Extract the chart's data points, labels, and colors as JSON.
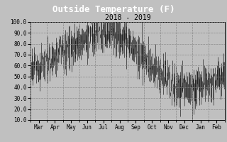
{
  "title": "Outside Temperature (F)",
  "subtitle": "2018 - 2019",
  "ylim": [
    10.0,
    100.0
  ],
  "yticks": [
    10.0,
    20.0,
    30.0,
    40.0,
    50.0,
    60.0,
    70.0,
    80.0,
    90.0,
    100.0
  ],
  "xtick_labels": [
    "Mar",
    "Apr",
    "May",
    "Jun",
    "Jul",
    "Aug",
    "Sep",
    "Oct",
    "Nov",
    "Dec",
    "Jan",
    "Feb"
  ],
  "n_months": 12,
  "background_color": "#c0c0c0",
  "title_bg_color": "#000000",
  "title_text_color": "#ffffff",
  "plot_line_color": "#000000",
  "grid_color": "#888888",
  "grid_style": "--",
  "subtitle_color": "#000000",
  "seed": 42,
  "means": [
    55,
    65,
    73,
    82,
    90,
    92,
    82,
    65,
    52,
    42,
    38,
    45
  ]
}
